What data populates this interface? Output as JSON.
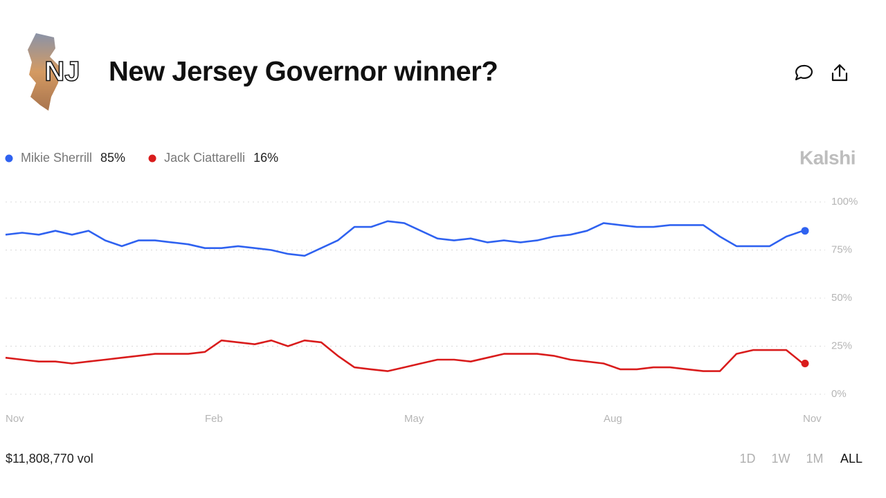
{
  "header": {
    "title": "New Jersey Governor winner?",
    "logo_text": "NJ"
  },
  "brand": "Kalshi",
  "volume": "$11,808,770 vol",
  "ranges": [
    "1D",
    "1W",
    "1M",
    "ALL"
  ],
  "selected_range": "ALL",
  "chart_data": {
    "type": "line",
    "categories": [
      "Nov",
      null,
      null,
      null,
      null,
      null,
      null,
      null,
      null,
      null,
      null,
      null,
      "Feb",
      null,
      null,
      null,
      null,
      null,
      null,
      null,
      null,
      null,
      null,
      null,
      "May",
      null,
      null,
      null,
      null,
      null,
      null,
      null,
      null,
      null,
      null,
      null,
      "Aug",
      null,
      null,
      null,
      null,
      null,
      null,
      null,
      null,
      null,
      null,
      null,
      "Nov"
    ],
    "series": [
      {
        "name": "Mikie Sherrill",
        "color": "#2f62f0",
        "current": 85,
        "current_label": "85%",
        "values": [
          83,
          84,
          83,
          85,
          83,
          85,
          80,
          77,
          80,
          80,
          79,
          78,
          76,
          76,
          77,
          76,
          75,
          73,
          72,
          76,
          80,
          87,
          87,
          90,
          89,
          85,
          81,
          80,
          81,
          79,
          80,
          79,
          80,
          82,
          83,
          85,
          89,
          88,
          87,
          87,
          88,
          88,
          88,
          82,
          77,
          77,
          77,
          82,
          85
        ]
      },
      {
        "name": "Jack Ciattarelli",
        "color": "#d91c1c",
        "current": 16,
        "current_label": "16%",
        "values": [
          19,
          18,
          17,
          17,
          16,
          17,
          18,
          19,
          20,
          21,
          21,
          21,
          22,
          28,
          27,
          26,
          28,
          25,
          28,
          27,
          20,
          14,
          13,
          12,
          14,
          16,
          18,
          18,
          17,
          19,
          21,
          21,
          21,
          20,
          18,
          17,
          16,
          13,
          13,
          14,
          14,
          13,
          12,
          12,
          21,
          23,
          23,
          23,
          16
        ]
      }
    ],
    "ylim": [
      0,
      100
    ],
    "yticks": [
      {
        "value": 0,
        "label": "0%"
      },
      {
        "value": 25,
        "label": "25%"
      },
      {
        "value": 50,
        "label": "50%"
      },
      {
        "value": 75,
        "label": "75%"
      },
      {
        "value": 100,
        "label": "100%"
      }
    ],
    "grid": true
  }
}
